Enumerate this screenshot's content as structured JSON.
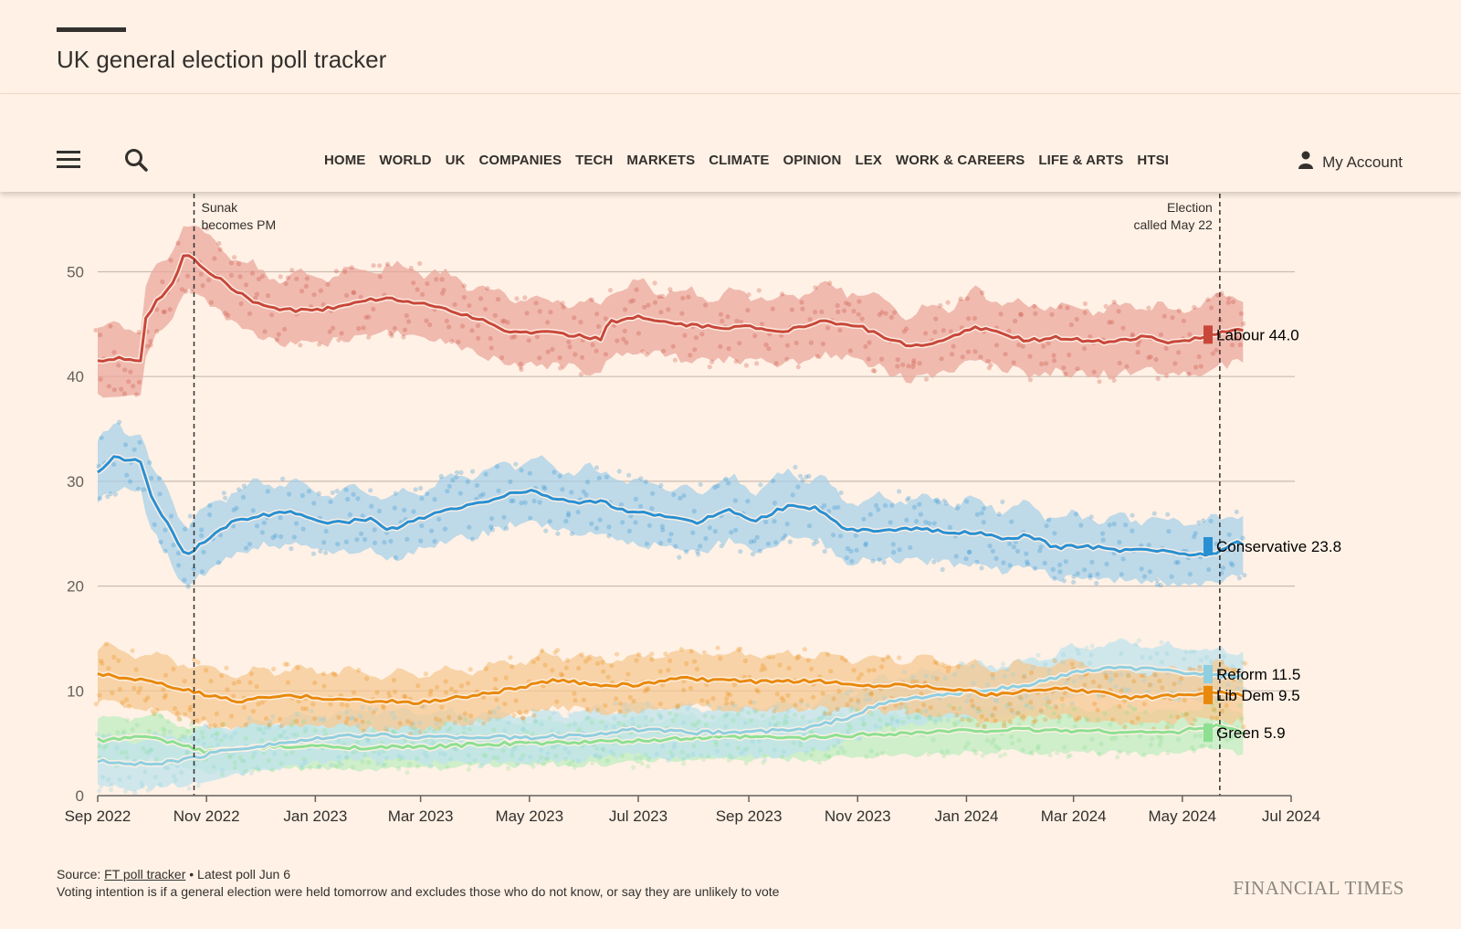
{
  "header": {
    "title": "UK general election poll tracker"
  },
  "nav": {
    "items": [
      "HOME",
      "WORLD",
      "UK",
      "COMPANIES",
      "TECH",
      "MARKETS",
      "CLIMATE",
      "OPINION",
      "LEX",
      "WORK & CAREERS",
      "LIFE & ARTS",
      "HTSI"
    ],
    "account_label": "My Account"
  },
  "icons": {
    "menu": "hamburger-menu-icon",
    "search": "search-icon",
    "account": "user-icon"
  },
  "chart_data": {
    "type": "line",
    "title": "",
    "xlabel": "",
    "ylabel": "",
    "ylim": [
      0,
      52
    ],
    "yticks": [
      0,
      10,
      20,
      30,
      40,
      50
    ],
    "xlim": [
      "2022-09-01",
      "2024-07-01"
    ],
    "xticks": [
      {
        "date": "2022-09-01",
        "label": "Sep 2022"
      },
      {
        "date": "2022-11-01",
        "label": "Nov 2022"
      },
      {
        "date": "2023-01-01",
        "label": "Jan 2023"
      },
      {
        "date": "2023-03-01",
        "label": "Mar 2023"
      },
      {
        "date": "2023-05-01",
        "label": "May 2023"
      },
      {
        "date": "2023-07-01",
        "label": "Jul 2023"
      },
      {
        "date": "2023-09-01",
        "label": "Sep 2023"
      },
      {
        "date": "2023-11-01",
        "label": "Nov 2023"
      },
      {
        "date": "2024-01-01",
        "label": "Jan 2024"
      },
      {
        "date": "2024-03-01",
        "label": "Mar 2024"
      },
      {
        "date": "2024-05-01",
        "label": "May 2024"
      },
      {
        "date": "2024-07-01",
        "label": "Jul 2024"
      }
    ],
    "grid": true,
    "annotations": [
      {
        "date": "2022-10-25",
        "lines": [
          "Sunak",
          "becomes PM"
        ],
        "align": "right"
      },
      {
        "date": "2024-05-22",
        "lines": [
          "Election",
          "called May 22"
        ],
        "align": "left"
      }
    ],
    "series": [
      {
        "name": "Labour",
        "latest": "44.0",
        "color": "#c8473a",
        "band": "#eba79c",
        "points": [
          [
            "2022-09-01",
            41.5
          ],
          [
            "2022-09-20",
            41.8
          ],
          [
            "2022-09-25",
            41.4
          ],
          [
            "2022-09-28",
            45.5
          ],
          [
            "2022-10-05",
            47.5
          ],
          [
            "2022-10-12",
            48.5
          ],
          [
            "2022-10-20",
            51.8
          ],
          [
            "2022-11-01",
            50.2
          ],
          [
            "2022-11-15",
            48.5
          ],
          [
            "2022-12-01",
            46.8
          ],
          [
            "2022-12-20",
            46.3
          ],
          [
            "2023-01-10",
            46.5
          ],
          [
            "2023-02-01",
            47.4
          ],
          [
            "2023-02-20",
            47.3
          ],
          [
            "2023-03-10",
            46.7
          ],
          [
            "2023-04-01",
            45.6
          ],
          [
            "2023-04-20",
            44.2
          ],
          [
            "2023-05-01",
            44.3
          ],
          [
            "2023-05-25",
            44.0
          ],
          [
            "2023-06-10",
            43.6
          ],
          [
            "2023-06-15",
            45.2
          ],
          [
            "2023-07-01",
            45.7
          ],
          [
            "2023-07-20",
            45.0
          ],
          [
            "2023-08-10",
            44.7
          ],
          [
            "2023-09-01",
            44.7
          ],
          [
            "2023-09-20",
            44.3
          ],
          [
            "2023-10-10",
            45.3
          ],
          [
            "2023-11-01",
            44.9
          ],
          [
            "2023-11-20",
            43.5
          ],
          [
            "2023-12-01",
            42.8
          ],
          [
            "2023-12-20",
            43.4
          ],
          [
            "2024-01-05",
            44.8
          ],
          [
            "2024-01-20",
            44.1
          ],
          [
            "2024-02-05",
            43.4
          ],
          [
            "2024-02-20",
            43.8
          ],
          [
            "2024-03-10",
            43.3
          ],
          [
            "2024-03-25",
            43.4
          ],
          [
            "2024-04-10",
            43.8
          ],
          [
            "2024-04-25",
            43.2
          ],
          [
            "2024-05-10",
            43.6
          ],
          [
            "2024-05-22",
            44.2
          ],
          [
            "2024-06-01",
            44.6
          ],
          [
            "2024-06-06",
            44.0
          ]
        ]
      },
      {
        "name": "Conservative",
        "latest": "23.8",
        "color": "#2890d2",
        "band": "#a8d0e8",
        "points": [
          [
            "2022-09-01",
            31.0
          ],
          [
            "2022-09-10",
            32.2
          ],
          [
            "2022-09-25",
            32.0
          ],
          [
            "2022-10-01",
            28.5
          ],
          [
            "2022-10-10",
            26.0
          ],
          [
            "2022-10-20",
            22.8
          ],
          [
            "2022-11-01",
            24.5
          ],
          [
            "2022-11-15",
            26.0
          ],
          [
            "2022-12-01",
            26.8
          ],
          [
            "2022-12-20",
            27.0
          ],
          [
            "2023-01-10",
            26.0
          ],
          [
            "2023-02-01",
            26.4
          ],
          [
            "2023-02-10",
            25.3
          ],
          [
            "2023-02-25",
            26.2
          ],
          [
            "2023-03-15",
            27.2
          ],
          [
            "2023-04-05",
            28.0
          ],
          [
            "2023-04-20",
            28.8
          ],
          [
            "2023-05-01",
            29.1
          ],
          [
            "2023-05-25",
            28.0
          ],
          [
            "2023-06-10",
            28.1
          ],
          [
            "2023-06-25",
            27.0
          ],
          [
            "2023-07-15",
            26.8
          ],
          [
            "2023-08-01",
            26.0
          ],
          [
            "2023-08-20",
            27.3
          ],
          [
            "2023-09-05",
            26.3
          ],
          [
            "2023-09-25",
            27.8
          ],
          [
            "2023-10-10",
            27.4
          ],
          [
            "2023-10-25",
            25.3
          ],
          [
            "2023-11-15",
            25.4
          ],
          [
            "2023-12-05",
            25.5
          ],
          [
            "2023-12-25",
            25.0
          ],
          [
            "2024-01-05",
            25.2
          ],
          [
            "2024-01-20",
            24.5
          ],
          [
            "2024-02-05",
            24.8
          ],
          [
            "2024-02-20",
            23.7
          ],
          [
            "2024-03-10",
            23.8
          ],
          [
            "2024-03-25",
            23.4
          ],
          [
            "2024-04-10",
            23.6
          ],
          [
            "2024-04-25",
            23.2
          ],
          [
            "2024-05-10",
            23.0
          ],
          [
            "2024-05-22",
            23.3
          ],
          [
            "2024-06-01",
            24.2
          ],
          [
            "2024-06-06",
            23.8
          ]
        ]
      },
      {
        "name": "Reform",
        "latest": "11.5",
        "color": "#8fcfe0",
        "band": "#bfe3ec",
        "points": [
          [
            "2022-09-01",
            3.3
          ],
          [
            "2022-09-20",
            3.0
          ],
          [
            "2022-10-10",
            3.2
          ],
          [
            "2022-10-25",
            3.6
          ],
          [
            "2022-11-10",
            4.3
          ],
          [
            "2022-12-01",
            4.8
          ],
          [
            "2023-01-01",
            5.4
          ],
          [
            "2023-02-01",
            5.8
          ],
          [
            "2023-03-01",
            5.6
          ],
          [
            "2023-04-01",
            5.6
          ],
          [
            "2023-05-01",
            5.5
          ],
          [
            "2023-06-01",
            5.8
          ],
          [
            "2023-07-01",
            6.3
          ],
          [
            "2023-08-01",
            6.0
          ],
          [
            "2023-09-01",
            6.1
          ],
          [
            "2023-10-01",
            6.3
          ],
          [
            "2023-10-25",
            7.4
          ],
          [
            "2023-11-15",
            8.8
          ],
          [
            "2023-12-01",
            9.3
          ],
          [
            "2023-12-25",
            9.7
          ],
          [
            "2024-01-15",
            10.2
          ],
          [
            "2024-02-01",
            10.4
          ],
          [
            "2024-02-20",
            11.3
          ],
          [
            "2024-03-10",
            12.0
          ],
          [
            "2024-04-01",
            12.2
          ],
          [
            "2024-04-25",
            11.9
          ],
          [
            "2024-05-20",
            11.4
          ],
          [
            "2024-06-06",
            11.5
          ]
        ]
      },
      {
        "name": "Lib Dem",
        "latest": "9.5",
        "color": "#e8890c",
        "band": "#f5c892",
        "points": [
          [
            "2022-09-01",
            11.6
          ],
          [
            "2022-09-25",
            11.0
          ],
          [
            "2022-10-15",
            10.3
          ],
          [
            "2022-11-01",
            9.6
          ],
          [
            "2022-11-20",
            9.0
          ],
          [
            "2022-12-10",
            9.5
          ],
          [
            "2023-01-01",
            9.4
          ],
          [
            "2023-02-01",
            9.0
          ],
          [
            "2023-03-01",
            8.9
          ],
          [
            "2023-04-01",
            9.6
          ],
          [
            "2023-04-25",
            10.3
          ],
          [
            "2023-05-15",
            11.0
          ],
          [
            "2023-06-10",
            10.6
          ],
          [
            "2023-07-01",
            10.5
          ],
          [
            "2023-07-20",
            11.2
          ],
          [
            "2023-08-15",
            11.0
          ],
          [
            "2023-09-15",
            10.8
          ],
          [
            "2023-10-10",
            11.0
          ],
          [
            "2023-11-01",
            10.5
          ],
          [
            "2023-11-25",
            10.6
          ],
          [
            "2023-12-20",
            10.3
          ],
          [
            "2024-01-15",
            9.6
          ],
          [
            "2024-02-05",
            10.0
          ],
          [
            "2024-02-25",
            10.2
          ],
          [
            "2024-03-15",
            9.8
          ],
          [
            "2024-04-05",
            9.3
          ],
          [
            "2024-04-25",
            9.6
          ],
          [
            "2024-05-20",
            9.9
          ],
          [
            "2024-06-06",
            9.5
          ]
        ]
      },
      {
        "name": "Green",
        "latest": "5.9",
        "color": "#8de092",
        "band": "#bfecc0",
        "points": [
          [
            "2022-09-01",
            5.3
          ],
          [
            "2022-10-01",
            5.6
          ],
          [
            "2022-11-01",
            4.2
          ],
          [
            "2022-12-01",
            4.6
          ],
          [
            "2023-01-01",
            4.7
          ],
          [
            "2023-02-01",
            4.6
          ],
          [
            "2023-03-01",
            4.6
          ],
          [
            "2023-04-01",
            4.9
          ],
          [
            "2023-05-01",
            5.0
          ],
          [
            "2023-06-01",
            5.1
          ],
          [
            "2023-07-01",
            5.2
          ],
          [
            "2023-08-01",
            5.5
          ],
          [
            "2023-09-01",
            5.6
          ],
          [
            "2023-10-01",
            5.5
          ],
          [
            "2023-11-01",
            5.8
          ],
          [
            "2023-12-01",
            6.0
          ],
          [
            "2024-01-01",
            6.2
          ],
          [
            "2024-02-01",
            6.3
          ],
          [
            "2024-03-01",
            6.2
          ],
          [
            "2024-04-01",
            6.1
          ],
          [
            "2024-04-25",
            6.0
          ],
          [
            "2024-05-20",
            6.7
          ],
          [
            "2024-06-06",
            5.9
          ]
        ]
      }
    ]
  },
  "footer": {
    "source_prefix": "Source: ",
    "source_link": "FT poll tracker",
    "latest_poll": " • Latest poll Jun 6",
    "note": "Voting intention is if a general election were held tomorrow and excludes those who do not know, or say they are unlikely to vote",
    "brand": "FINANCIAL TIMES"
  }
}
